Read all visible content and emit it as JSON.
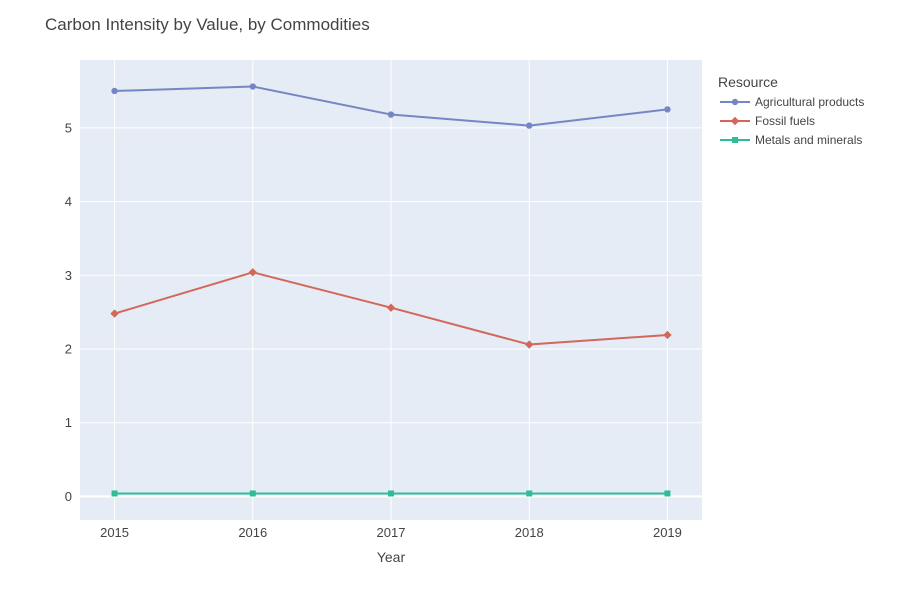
{
  "chart_data": {
    "type": "line",
    "title": "Carbon Intensity by Value, by Commodities",
    "xlabel": "Year",
    "ylabel": "",
    "x": [
      2015,
      2016,
      2017,
      2018,
      2019
    ],
    "xticks": [
      "2015",
      "2016",
      "2017",
      "2018",
      "2019"
    ],
    "xlim": [
      2014.75,
      2019.25
    ],
    "yticks": [
      0,
      1,
      2,
      3,
      4,
      5
    ],
    "ylim": [
      -0.32,
      5.92
    ],
    "grid": true,
    "legend": {
      "title": "Resource",
      "placement": "top-right"
    },
    "series": [
      {
        "name": "Agricultural products",
        "values": [
          5.5,
          5.56,
          5.18,
          5.03,
          5.25
        ],
        "color": "#7686c4",
        "marker": "circle"
      },
      {
        "name": "Fossil fuels",
        "values": [
          2.48,
          3.04,
          2.56,
          2.06,
          2.19
        ],
        "color": "#d2675a",
        "marker": "diamond"
      },
      {
        "name": "Metals and minerals",
        "values": [
          0.04,
          0.04,
          0.04,
          0.04,
          0.04
        ],
        "color": "#2ebe96",
        "marker": "square"
      }
    ]
  }
}
